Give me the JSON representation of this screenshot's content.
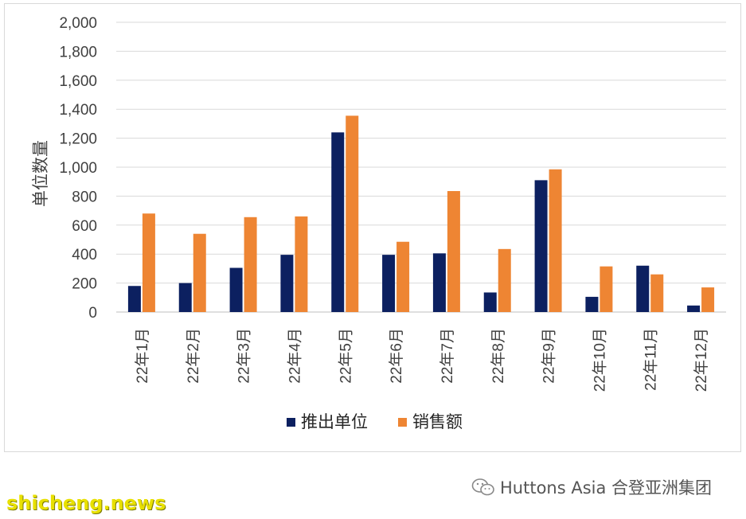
{
  "chart_data": {
    "type": "bar",
    "title": "",
    "ylabel": "单位数量",
    "xlabel": "",
    "ylim": [
      0,
      2000
    ],
    "yticks": [
      0,
      200,
      400,
      600,
      800,
      1000,
      1200,
      1400,
      1600,
      1800,
      2000
    ],
    "ytick_labels": [
      "0",
      "200",
      "400",
      "600",
      "800",
      "1,000",
      "1,200",
      "1,400",
      "1,600",
      "1,800",
      "2,000"
    ],
    "categories": [
      "22年1月",
      "22年2月",
      "22年3月",
      "22年4月",
      "22年5月",
      "22年6月",
      "22年7月",
      "22年8月",
      "22年9月",
      "22年10月",
      "22年11月",
      "22年12月"
    ],
    "series": [
      {
        "name": "推出单位",
        "color": "#0c2060",
        "values": [
          180,
          200,
          305,
          395,
          1240,
          395,
          405,
          135,
          910,
          105,
          320,
          45
        ]
      },
      {
        "name": "销售额",
        "color": "#ee8533",
        "values": [
          680,
          540,
          655,
          660,
          1355,
          485,
          835,
          435,
          985,
          315,
          260,
          170
        ]
      }
    ],
    "grid": true,
    "legend_position": "bottom"
  },
  "footer": {
    "watermark": "shicheng.news",
    "credit": "Huttons Asia 合登亚洲集团",
    "credit_icon": "wechat-icon"
  }
}
